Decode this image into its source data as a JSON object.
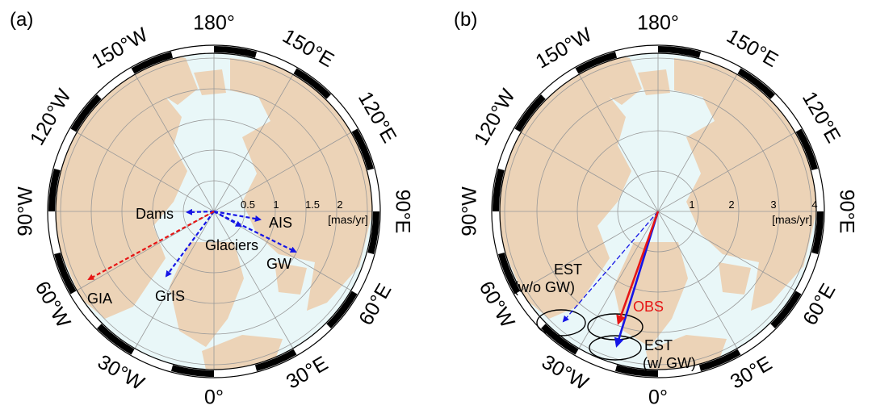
{
  "panels": [
    {
      "label": "(a)",
      "lon_labels": [
        "180°",
        "150°E",
        "120°E",
        "90°E",
        "60°E",
        "30°E",
        "0°",
        "30°W",
        "60°W",
        "90°W",
        "120°W",
        "150°W"
      ],
      "scale_ticks": [
        "0.5",
        "1",
        "1.5",
        "2"
      ],
      "unit": "[mas/yr]",
      "vectors": [
        {
          "name": "Dams",
          "color": "#1515e6"
        },
        {
          "name": "AIS",
          "color": "#1515e6"
        },
        {
          "name": "Glaciers",
          "color": "#1515e6"
        },
        {
          "name": "GW",
          "color": "#1515e6"
        },
        {
          "name": "GrIS",
          "color": "#1515e6"
        },
        {
          "name": "GIA",
          "color": "#e61515"
        }
      ]
    },
    {
      "label": "(b)",
      "lon_labels": [
        "180°",
        "150°E",
        "120°E",
        "90°E",
        "60°E",
        "30°E",
        "0°",
        "30°W",
        "60°W",
        "90°W",
        "120°W",
        "150°W"
      ],
      "scale_ticks": [
        "1",
        "2",
        "3",
        "4"
      ],
      "unit": "[mas/yr]",
      "vectors": [
        {
          "name": "OBS",
          "color": "#e61515"
        },
        {
          "name_line1": "EST",
          "name_line2": "(w/ GW)",
          "color": "#1515e6"
        },
        {
          "name_line1": "EST",
          "name_line2": "(w/o GW)",
          "color": "#1515e6"
        }
      ]
    }
  ],
  "colors": {
    "ocean": "#e9f7f8",
    "land": "#ecd3b7",
    "grid": "#999999",
    "frame": "#000000"
  }
}
